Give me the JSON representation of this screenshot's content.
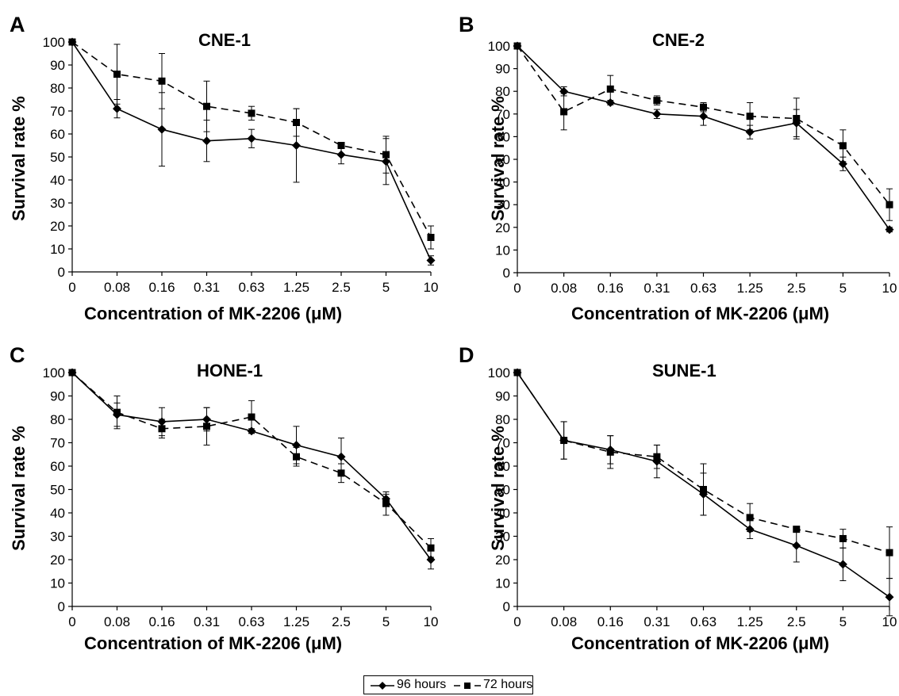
{
  "chart_data": [
    {
      "panel": "A",
      "type": "line",
      "title": "CNE-1",
      "xlabel": "Concentration of MK-2206 (μM)",
      "ylabel": "Survival rate %",
      "categories": [
        "0",
        "0.08",
        "0.16",
        "0.31",
        "0.63",
        "1.25",
        "2.5",
        "5",
        "10"
      ],
      "ylim": [
        0,
        100
      ],
      "yticks": [
        0,
        10,
        20,
        30,
        40,
        50,
        60,
        70,
        80,
        90,
        100
      ],
      "series": [
        {
          "name": "96 hours",
          "marker": "diamond",
          "dash": "solid",
          "values": [
            100,
            71,
            62,
            57,
            58,
            55,
            51,
            48,
            5
          ],
          "errors": [
            0,
            4,
            16,
            9,
            4,
            16,
            4,
            10,
            2
          ]
        },
        {
          "name": "72 hours",
          "marker": "square",
          "dash": "dashed",
          "values": [
            100,
            86,
            83,
            72,
            69,
            65,
            55,
            51,
            15
          ],
          "errors": [
            0,
            13,
            12,
            11,
            3,
            6,
            1,
            8,
            5
          ]
        }
      ]
    },
    {
      "panel": "B",
      "type": "line",
      "title": "CNE-2",
      "xlabel": "Concentration of MK-2206 (μM)",
      "ylabel": "Survival rate %",
      "categories": [
        "0",
        "0.08",
        "0.16",
        "0.31",
        "0.63",
        "1.25",
        "2.5",
        "5",
        "10"
      ],
      "ylim": [
        0,
        100
      ],
      "yticks": [
        0,
        10,
        20,
        30,
        40,
        50,
        60,
        70,
        80,
        90,
        100
      ],
      "series": [
        {
          "name": "96 hours",
          "marker": "diamond",
          "dash": "solid",
          "values": [
            100,
            80,
            75,
            70,
            69,
            62,
            66,
            48,
            19
          ],
          "errors": [
            0,
            2,
            1,
            2,
            4,
            3,
            6,
            3,
            1
          ]
        },
        {
          "name": "72 hours",
          "marker": "square",
          "dash": "dashed",
          "values": [
            100,
            71,
            81,
            76,
            73,
            69,
            68,
            56,
            30
          ],
          "errors": [
            0,
            8,
            6,
            2,
            2,
            6,
            9,
            7,
            7
          ]
        }
      ]
    },
    {
      "panel": "C",
      "type": "line",
      "title": "HONE-1",
      "xlabel": "Concentration of MK-2206 (μM)",
      "ylabel": "Survival rate %",
      "categories": [
        "0",
        "0.08",
        "0.16",
        "0.31",
        "0.63",
        "1.25",
        "2.5",
        "5",
        "10"
      ],
      "ylim": [
        0,
        100
      ],
      "yticks": [
        0,
        10,
        20,
        30,
        40,
        50,
        60,
        70,
        80,
        90,
        100
      ],
      "series": [
        {
          "name": "96 hours",
          "marker": "diamond",
          "dash": "solid",
          "values": [
            100,
            82,
            79,
            80,
            75,
            69,
            64,
            46,
            20
          ],
          "errors": [
            0,
            5,
            6,
            5,
            1,
            8,
            8,
            2,
            4
          ]
        },
        {
          "name": "72 hours",
          "marker": "square",
          "dash": "dashed",
          "values": [
            100,
            83,
            76,
            77,
            81,
            64,
            57,
            44,
            25
          ],
          "errors": [
            0,
            7,
            4,
            8,
            7,
            4,
            4,
            5,
            4
          ]
        }
      ]
    },
    {
      "panel": "D",
      "type": "line",
      "title": "SUNE-1",
      "xlabel": "Concentration of MK-2206 (μM)",
      "ylabel": "Survival rate %",
      "categories": [
        "0",
        "0.08",
        "0.16",
        "0.31",
        "0.63",
        "1.25",
        "2.5",
        "5",
        "10"
      ],
      "ylim": [
        0,
        100
      ],
      "yticks": [
        0,
        10,
        20,
        30,
        40,
        50,
        60,
        70,
        80,
        90,
        100
      ],
      "series": [
        {
          "name": "96 hours",
          "marker": "diamond",
          "dash": "solid",
          "values": [
            100,
            71,
            67,
            62,
            48,
            33,
            26,
            18,
            4
          ],
          "errors": [
            0,
            8,
            6,
            7,
            9,
            4,
            7,
            7,
            8
          ]
        },
        {
          "name": "72 hours",
          "marker": "square",
          "dash": "dashed",
          "values": [
            100,
            71,
            66,
            64,
            50,
            38,
            33,
            29,
            23
          ],
          "errors": [
            0,
            8,
            7,
            5,
            11,
            6,
            1,
            4,
            11
          ]
        }
      ]
    }
  ],
  "legend": {
    "entries": [
      {
        "label": "96 hours",
        "marker": "diamond",
        "dash": "solid"
      },
      {
        "label": "72 hours",
        "marker": "square",
        "dash": "dashed"
      }
    ]
  }
}
